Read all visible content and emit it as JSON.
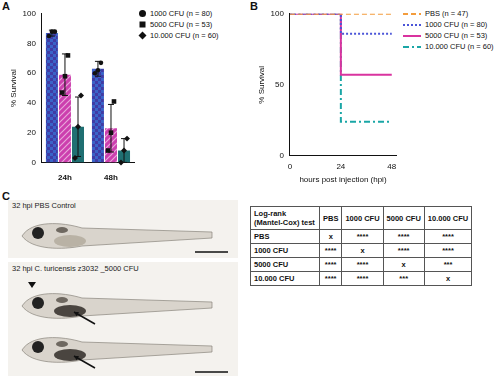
{
  "chart_data": [
    {
      "panel": "A",
      "type": "bar",
      "categories": [
        "24h",
        "48h"
      ],
      "y_label": "% Survival",
      "ylim": [
        0,
        100
      ],
      "yticks": [
        0,
        20,
        40,
        60,
        80,
        100
      ],
      "grid": false,
      "legend": "right",
      "series": [
        {
          "name": "1000 CFU (n = 80)",
          "color": "#3a64c8",
          "marker": "circle",
          "values": [
            87,
            63
          ],
          "errors": [
            2,
            5
          ],
          "points": [
            [
              85,
              88,
              88
            ],
            [
              60,
              62,
              67
            ]
          ]
        },
        {
          "name": "5000 CFU (n = 53)",
          "color": "#cc3fae",
          "marker": "square",
          "values": [
            59,
            23
          ],
          "errors": [
            14,
            16
          ],
          "points": [
            [
              47,
              58,
              72
            ],
            [
              8,
              20,
              41
            ]
          ]
        },
        {
          "name": "10.000 CFU (n = 60)",
          "color": "#1f6f72",
          "marker": "diamond",
          "values": [
            24,
            8
          ],
          "errors": [
            20,
            8
          ],
          "points": [
            [
              3,
              24,
              45
            ],
            [
              0,
              8,
              16
            ]
          ]
        }
      ]
    },
    {
      "panel": "B",
      "type": "line",
      "x": [
        0,
        24,
        48
      ],
      "x_label": "hours post injection (hpi)",
      "y_label": "% Survival",
      "xlim": [
        0,
        50
      ],
      "xticks": [
        0,
        24,
        48
      ],
      "ylim": [
        0,
        100
      ],
      "yticks": [
        0,
        50,
        100
      ],
      "grid": false,
      "legend": "right",
      "series": [
        {
          "name": "PBS (n = 47)",
          "color": "#f39c3c",
          "line_style": "dashed",
          "values": [
            100,
            100,
            100
          ]
        },
        {
          "name": "1000 CFU (n = 80)",
          "color": "#4b55d8",
          "line_style": "dotted",
          "values": [
            100,
            86,
            86
          ]
        },
        {
          "name": "5000 CFU (n = 53)",
          "color": "#d9339f",
          "line_style": "solid",
          "values": [
            100,
            57,
            57
          ]
        },
        {
          "name": "10.000 CFU (n = 60)",
          "color": "#1aa6a6",
          "line_style": "dashdot",
          "values": [
            100,
            24,
            24
          ]
        }
      ]
    }
  ],
  "images": {
    "panel": "C",
    "labels": [
      "32 hpi PBS Control",
      "32 hpi C. turicensis z3032 _5000 CFU"
    ]
  },
  "table": {
    "header": [
      "Log-rank (Mantel-Cox) test",
      "PBS",
      "1000 CFU",
      "5000 CFU",
      "10.000 CFU"
    ],
    "rows": [
      [
        "PBS",
        "x",
        "****",
        "****",
        "****"
      ],
      [
        "1000 CFU",
        "****",
        "x",
        "****",
        "****"
      ],
      [
        "5000 CFU",
        "****",
        "****",
        "x",
        "***"
      ],
      [
        "10.000 CFU",
        "****",
        "****",
        "***",
        "x"
      ]
    ]
  }
}
